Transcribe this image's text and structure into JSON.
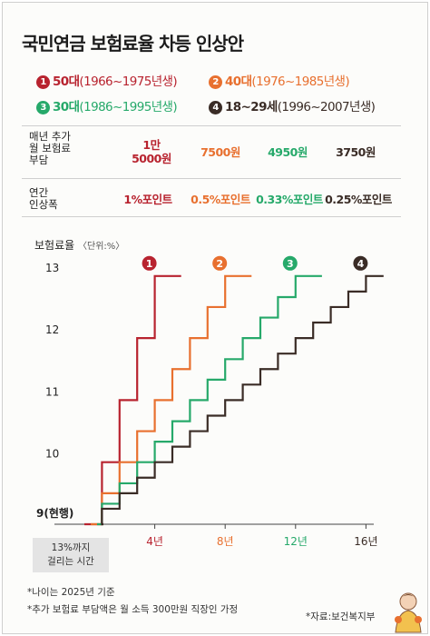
{
  "title": "국민연금 보험료율 차등 인상안",
  "groups": [
    {
      "num": "1",
      "label": "50대",
      "years": "(1966~1975년생)",
      "color": "#b8232f"
    },
    {
      "num": "2",
      "label": "40대",
      "years": "(1976~1985년생)",
      "color": "#e8702f"
    },
    {
      "num": "3",
      "label": "30대",
      "years": "(1986~1995년생)",
      "color": "#26a96a"
    },
    {
      "num": "4",
      "label": "18~29세",
      "years": "(1996~2007년생)",
      "color": "#3a2c26"
    }
  ],
  "table": {
    "row1_label_line1": "매년 추가",
    "row1_label_line2": "월 보험료",
    "row1_label_line3": "부담",
    "row1_values": [
      {
        "line1": "1만",
        "line2": "5000원"
      },
      {
        "line1": "7500원",
        "line2": ""
      },
      {
        "line1": "4950원",
        "line2": ""
      },
      {
        "line1": "3750원",
        "line2": ""
      }
    ],
    "row2_label_line1": "연간",
    "row2_label_line2": "인상폭",
    "row2_values": [
      "1%포인트",
      "0.5%포인트",
      "0.33%포인트",
      "0.25%포인트"
    ]
  },
  "chart_data": {
    "type": "line",
    "step": true,
    "ylabel": "보험료율",
    "yunit": "〈단위:%〉",
    "ylim": [
      9,
      13
    ],
    "yticks": [
      "9(현행)",
      "10",
      "11",
      "12",
      "13"
    ],
    "xlim": [
      0,
      17
    ],
    "xticks": [
      "4년",
      "8년",
      "12년",
      "16년"
    ],
    "series": [
      {
        "name": "1",
        "x": [
          0,
          1,
          2,
          3,
          4,
          5.5
        ],
        "y": [
          9,
          10,
          11,
          12,
          13,
          13
        ]
      },
      {
        "name": "2",
        "x": [
          0,
          1,
          2,
          3,
          4,
          5,
          6,
          7,
          8,
          9.5
        ],
        "y": [
          9,
          9.5,
          10,
          10.5,
          11,
          11.5,
          12,
          12.5,
          13,
          13
        ]
      },
      {
        "name": "3",
        "x": [
          0,
          1,
          2,
          3,
          4,
          5,
          6,
          7,
          8,
          9,
          10,
          11,
          12,
          13.5
        ],
        "y": [
          9,
          9.33,
          9.66,
          10,
          10.33,
          10.66,
          11,
          11.33,
          11.66,
          12,
          12.33,
          12.66,
          13,
          13
        ]
      },
      {
        "name": "4",
        "x": [
          0,
          1,
          2,
          3,
          4,
          5,
          6,
          7,
          8,
          9,
          10,
          11,
          12,
          13,
          14,
          15,
          16,
          17
        ],
        "y": [
          9,
          9.25,
          9.5,
          9.75,
          10,
          10.25,
          10.5,
          10.75,
          11,
          11.25,
          11.5,
          11.75,
          12,
          12.25,
          12.5,
          12.75,
          13,
          13
        ]
      }
    ],
    "grid": false,
    "annotation": {
      "line1": "13%까지",
      "line2": "걸리는 시간"
    }
  },
  "footnotes": [
    "*나이는 2025년 기준",
    "*추가 보험료 부담액은 월 소득 300만원 직장인 가정"
  ],
  "source": "*자료:보건복지부"
}
